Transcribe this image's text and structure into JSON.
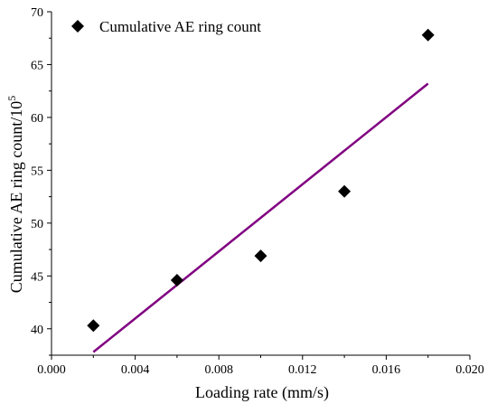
{
  "chart_data": {
    "type": "scatter",
    "title": "",
    "xlabel": "Loading rate (mm/s)",
    "ylabel": "Cumulative AE ring count/10",
    "ylabel_superscript": "5",
    "xlim": [
      0.0,
      0.02
    ],
    "ylim": [
      37.5,
      70
    ],
    "xticks": [
      "0.000",
      "0.004",
      "0.008",
      "0.012",
      "0.016",
      "0.020"
    ],
    "xtick_values": [
      0.0,
      0.004,
      0.008,
      0.012,
      0.016,
      0.02
    ],
    "yticks": [
      "40",
      "45",
      "50",
      "55",
      "60",
      "65",
      "70"
    ],
    "ytick_values": [
      40,
      45,
      50,
      55,
      60,
      65,
      70
    ],
    "grid": false,
    "legend_position": "top-left",
    "series": [
      {
        "name": "Cumulative AE ring count",
        "marker": "diamond",
        "color": "#000000",
        "x": [
          0.002,
          0.006,
          0.01,
          0.014,
          0.018
        ],
        "y": [
          40.3,
          44.6,
          46.9,
          53.0,
          67.8
        ]
      }
    ],
    "fit_line": {
      "color": "#800080",
      "x": [
        0.002,
        0.018
      ],
      "y": [
        37.8,
        63.2
      ]
    }
  }
}
